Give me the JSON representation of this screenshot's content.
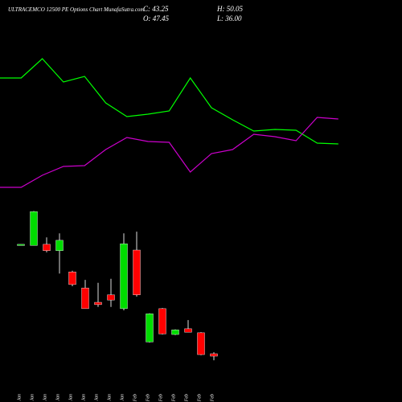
{
  "chart_data": [
    {
      "type": "line",
      "ylim": [
        0,
        100
      ],
      "series": [
        {
          "color": "#00ff00",
          "values": [
            81.5,
            81.5,
            93.5,
            79,
            82.5,
            66,
            57.5,
            59,
            61,
            81.5,
            63,
            55.5,
            48.5,
            49.5,
            49,
            41,
            40.5
          ]
        },
        {
          "color": "#cc00cc",
          "values": [
            13.5,
            13.5,
            21,
            26.5,
            27,
            37,
            44.5,
            42,
            41.5,
            23,
            34.5,
            37,
            46.5,
            45,
            42.5,
            57,
            56
          ]
        }
      ]
    },
    {
      "type": "candlestick",
      "title": "ULTRACEMCO 12500 PE Options Chart MunafaSutra.com",
      "annotations": [
        "C: 43.25",
        "H: 50.05",
        "O: 47.45",
        "L: 36.00"
      ],
      "up_color": "#00dd00",
      "down_color": "#ff0000",
      "ylim": [
        20,
        320
      ],
      "categories": [
        "20 Jan",
        "21 Jan",
        "22 Jan",
        "23 Jan",
        "27 Jan",
        "28 Jan",
        "29 Jan",
        "30 Jan",
        "31 Jan",
        "01 Feb",
        "03 Feb",
        "04 Feb",
        "05 Feb",
        "06 Feb",
        "07 Feb",
        "10 Feb"
      ],
      "open": [
        237,
        236,
        238,
        227,
        190,
        162,
        137,
        150,
        126,
        228,
        68,
        126,
        81,
        91,
        84,
        47.45
      ],
      "high": [
        238,
        296,
        250,
        257,
        192,
        176,
        171,
        178,
        257,
        260,
        118,
        127,
        90,
        106,
        85,
        50.05
      ],
      "low": [
        237,
        236,
        224,
        187,
        165,
        126,
        129,
        129,
        123,
        147,
        67,
        81,
        80,
        85,
        45,
        36
      ],
      "close": [
        238,
        295,
        227,
        245,
        168,
        126,
        133,
        141,
        239,
        150,
        117,
        82,
        89,
        85,
        46,
        43.25
      ]
    }
  ]
}
